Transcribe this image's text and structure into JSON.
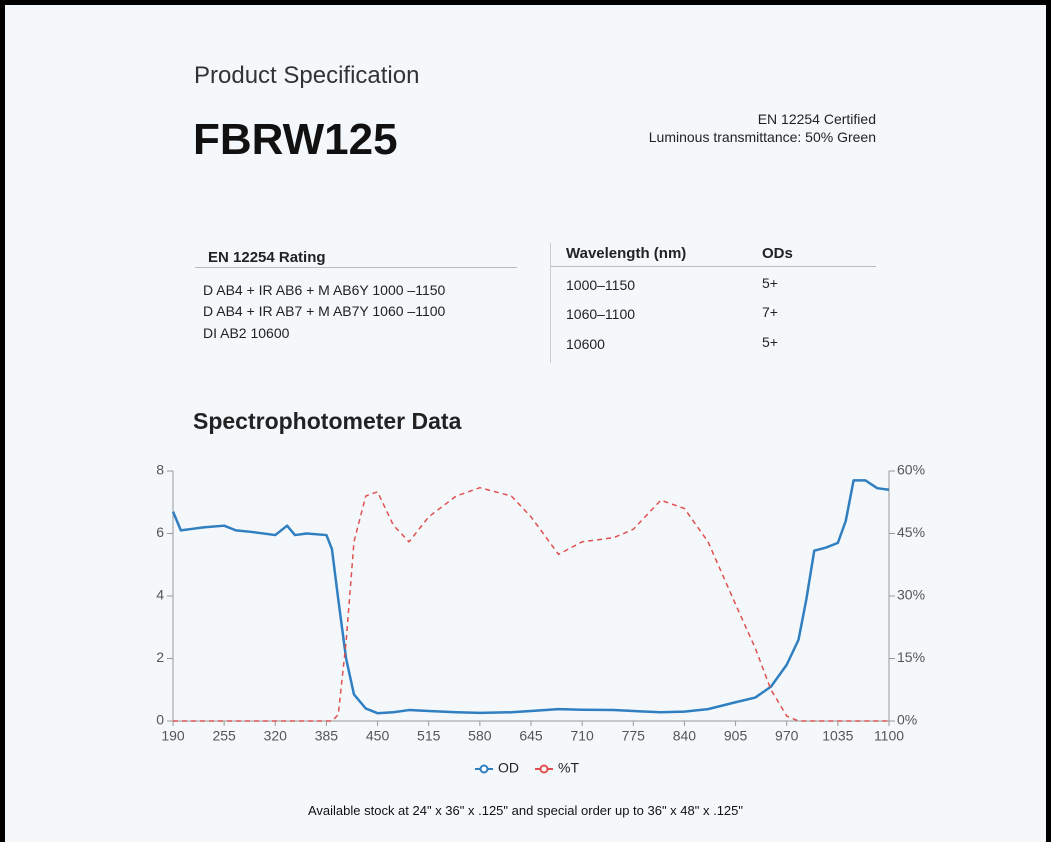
{
  "header": {
    "subtitle": "Product Specification",
    "title": "FBRW125",
    "certification": "EN 12254 Certified",
    "transmittance": "Luminous transmittance: 50% Green"
  },
  "rating_table": {
    "header": "EN 12254 Rating",
    "rows": [
      "D AB4 + IR AB6 + M AB6Y 1000 –1150",
      "D AB4 + IR AB7 + M AB7Y 1060 –1100",
      "DI AB2 10600"
    ]
  },
  "wavelength_table": {
    "headers": [
      "Wavelength (nm)",
      "ODs"
    ],
    "rows": [
      [
        "1000–1150",
        "5+"
      ],
      [
        "1060–1100",
        "7+"
      ],
      [
        "10600",
        "5+"
      ]
    ]
  },
  "chart_data": {
    "type": "line",
    "title": "Spectrophotometer Data",
    "x": [
      190,
      200,
      215,
      230,
      255,
      270,
      290,
      320,
      335,
      345,
      360,
      385,
      392,
      400,
      410,
      420,
      435,
      450,
      470,
      490,
      515,
      550,
      580,
      620,
      645,
      680,
      710,
      750,
      775,
      810,
      840,
      870,
      905,
      930,
      950,
      970,
      985,
      995,
      1005,
      1020,
      1035,
      1045,
      1055,
      1070,
      1085,
      1100
    ],
    "series": [
      {
        "name": "OD",
        "color": "#2f7fc1",
        "style": "solid",
        "axis": "y",
        "values": [
          6.7,
          6.1,
          6.15,
          6.2,
          6.25,
          6.1,
          6.05,
          5.95,
          6.25,
          5.95,
          6.0,
          5.95,
          5.5,
          3.9,
          2.0,
          0.85,
          0.4,
          0.25,
          0.28,
          0.35,
          0.32,
          0.28,
          0.26,
          0.28,
          0.32,
          0.38,
          0.36,
          0.35,
          0.32,
          0.28,
          0.3,
          0.38,
          0.6,
          0.75,
          1.1,
          1.8,
          2.6,
          3.9,
          5.45,
          5.55,
          5.7,
          6.4,
          7.7,
          7.7,
          7.45,
          7.4
        ]
      },
      {
        "name": "%T",
        "color": "#e05050",
        "style": "dashed",
        "axis": "y2",
        "values": [
          0,
          0,
          0,
          0,
          0,
          0,
          0,
          0,
          0,
          0,
          0,
          0,
          0,
          1.5,
          19,
          43,
          54,
          55,
          47,
          43,
          49,
          54,
          56,
          54,
          49,
          40,
          43,
          44,
          46,
          53,
          51,
          43,
          28,
          17.5,
          7.5,
          1.2,
          0,
          0,
          0,
          0,
          0,
          0,
          0,
          0,
          0,
          0
        ]
      }
    ],
    "xlim": [
      190,
      1100
    ],
    "xticks": [
      190,
      255,
      320,
      385,
      450,
      515,
      580,
      645,
      710,
      775,
      840,
      905,
      970,
      1035,
      1100
    ],
    "ylim": [
      0,
      8
    ],
    "yticks": [
      0,
      2,
      4,
      6,
      8
    ],
    "y2lim": [
      0,
      60
    ],
    "y2ticks": [
      {
        "value": 0,
        "label": "0%"
      },
      {
        "value": 15,
        "label": "15%"
      },
      {
        "value": 30,
        "label": "30%"
      },
      {
        "value": 45,
        "label": "45%"
      },
      {
        "value": 60,
        "label": "60%"
      }
    ],
    "legend": "bottom"
  },
  "footer": "Available stock at 24\" x 36\" x .125\" and special order up to 36\" x 48\" x .125\""
}
